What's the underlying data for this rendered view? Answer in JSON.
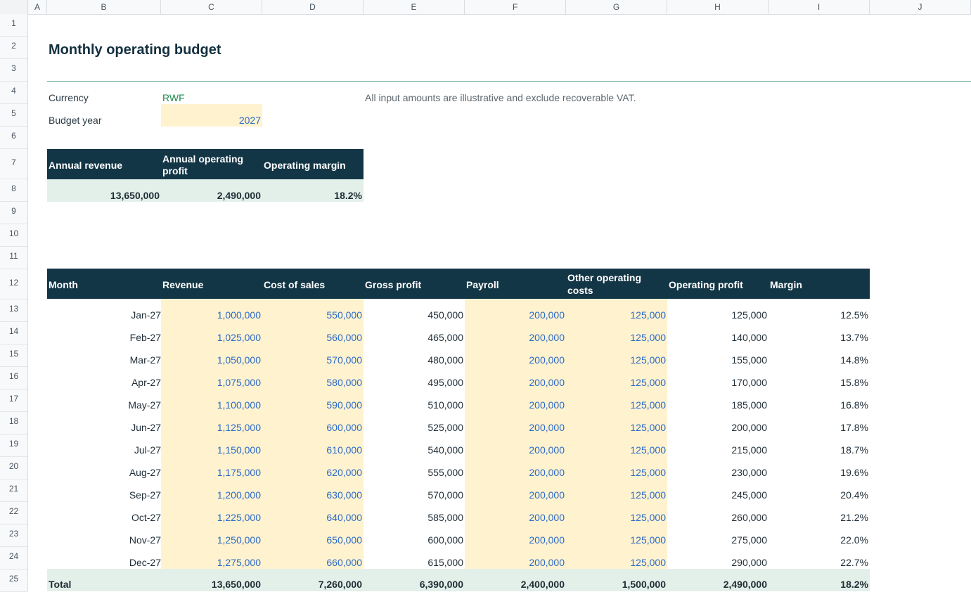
{
  "columns": [
    "A",
    "B",
    "C",
    "D",
    "E",
    "F",
    "G",
    "H",
    "I",
    "J"
  ],
  "rows": [
    "1",
    "2",
    "3",
    "4",
    "5",
    "6",
    "7",
    "8",
    "9",
    "10",
    "11",
    "12",
    "13",
    "14",
    "15",
    "16",
    "17",
    "18",
    "19",
    "20",
    "21",
    "22",
    "23",
    "24",
    "25"
  ],
  "sheet": {
    "title": "Monthly operating budget",
    "currency_label": "Currency",
    "currency_value": "RWF",
    "year_label": "Budget year",
    "year_value": "2027",
    "note": "All input amounts are illustrative and exclude recoverable VAT."
  },
  "kpi": {
    "headers": [
      "Annual revenue",
      "Annual operating profit",
      "Operating margin"
    ],
    "values": [
      "13,650,000",
      "2,490,000",
      "18.2%"
    ]
  },
  "table": {
    "headers": [
      "Month",
      "Revenue",
      "Cost of sales",
      "Gross profit",
      "Payroll",
      "Other operating costs",
      "Operating profit",
      "Margin"
    ],
    "rows": [
      [
        "Jan-27",
        "1,000,000",
        "550,000",
        "450,000",
        "200,000",
        "125,000",
        "125,000",
        "12.5%"
      ],
      [
        "Feb-27",
        "1,025,000",
        "560,000",
        "465,000",
        "200,000",
        "125,000",
        "140,000",
        "13.7%"
      ],
      [
        "Mar-27",
        "1,050,000",
        "570,000",
        "480,000",
        "200,000",
        "125,000",
        "155,000",
        "14.8%"
      ],
      [
        "Apr-27",
        "1,075,000",
        "580,000",
        "495,000",
        "200,000",
        "125,000",
        "170,000",
        "15.8%"
      ],
      [
        "May-27",
        "1,100,000",
        "590,000",
        "510,000",
        "200,000",
        "125,000",
        "185,000",
        "16.8%"
      ],
      [
        "Jun-27",
        "1,125,000",
        "600,000",
        "525,000",
        "200,000",
        "125,000",
        "200,000",
        "17.8%"
      ],
      [
        "Jul-27",
        "1,150,000",
        "610,000",
        "540,000",
        "200,000",
        "125,000",
        "215,000",
        "18.7%"
      ],
      [
        "Aug-27",
        "1,175,000",
        "620,000",
        "555,000",
        "200,000",
        "125,000",
        "230,000",
        "19.6%"
      ],
      [
        "Sep-27",
        "1,200,000",
        "630,000",
        "570,000",
        "200,000",
        "125,000",
        "245,000",
        "20.4%"
      ],
      [
        "Oct-27",
        "1,225,000",
        "640,000",
        "585,000",
        "200,000",
        "125,000",
        "260,000",
        "21.2%"
      ],
      [
        "Nov-27",
        "1,250,000",
        "650,000",
        "600,000",
        "200,000",
        "125,000",
        "275,000",
        "22.0%"
      ],
      [
        "Dec-27",
        "1,275,000",
        "660,000",
        "615,000",
        "200,000",
        "125,000",
        "290,000",
        "22.7%"
      ]
    ],
    "total": [
      "Total",
      "13,650,000",
      "7,260,000",
      "6,390,000",
      "2,400,000",
      "1,500,000",
      "2,490,000",
      "18.2%"
    ]
  },
  "colors": {
    "header_bg": "#133646",
    "input_fill": "#fff2cf",
    "kpi_fill": "#e3f0e9",
    "input_text": "#2a6ac8",
    "accent_rule": "#5a9f87"
  }
}
